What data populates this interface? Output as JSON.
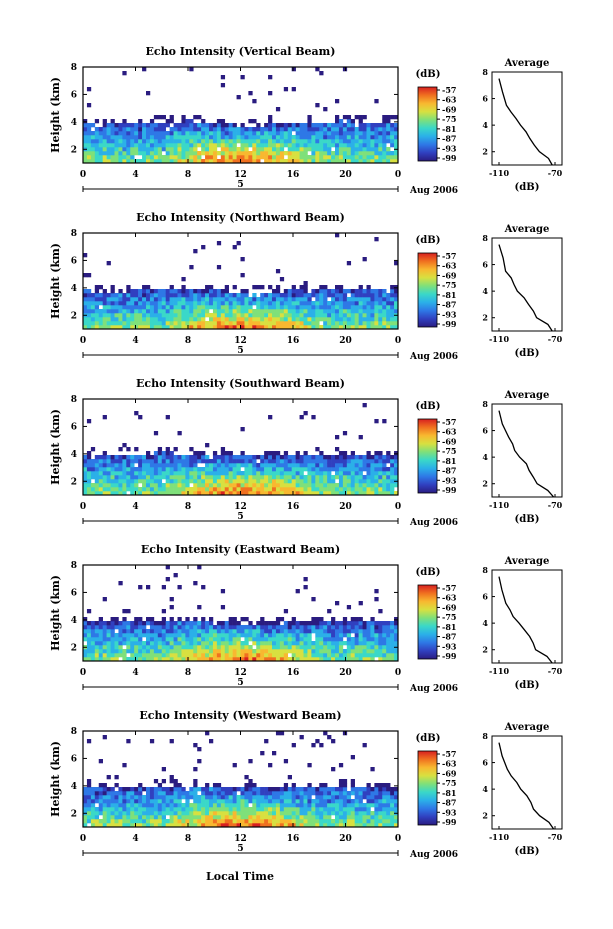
{
  "colorbar_unit": "(dB)",
  "colorbar_labels": [
    "-57",
    "-63",
    "-69",
    "-75",
    "-81",
    "-87",
    "-93",
    "-99"
  ],
  "colorbar_colors": [
    "#2a1c80",
    "#3040c0",
    "#2e78e6",
    "#2bb0e8",
    "#3ad8c8",
    "#7fe07a",
    "#d8e040",
    "#f8b830",
    "#f07020",
    "#d82020"
  ],
  "date_label": "Aug 2006",
  "x_ticks": [
    "0",
    "4",
    "8",
    "12",
    "16",
    "20",
    "0"
  ],
  "y_ticks": [
    "2",
    "4",
    "6",
    "8"
  ],
  "y_label": "Height (km)",
  "x_label": "Local Time",
  "day_marker": "5",
  "avg_title": "Average",
  "avg_xticks": [
    "-110",
    "-70"
  ],
  "avg_xlabel": "(dB)",
  "chart_data": [
    {
      "type": "heatmap",
      "title": "Echo Intensity (Vertical Beam)",
      "xlabel": "",
      "ylabel": "Height (km)",
      "xlim": [
        0,
        24
      ],
      "ylim": [
        1,
        8
      ],
      "zlim": [
        -99,
        -57
      ],
      "unit": "dB",
      "echo_top_km": [
        3.9,
        3.8,
        3.9,
        4.0,
        4.1,
        3.9,
        3.7,
        3.8,
        3.9,
        4.0,
        4.1,
        4.0,
        4.0
      ],
      "avg_profile": {
        "x": [
          -72,
          -75,
          -82,
          -85,
          -88,
          -91,
          -95,
          -98,
          -101,
          -104,
          -108,
          -110
        ],
        "y": [
          1,
          1.5,
          2.0,
          2.5,
          3.0,
          3.5,
          4.0,
          4.5,
          5.0,
          5.5,
          6.5,
          7.5
        ]
      }
    },
    {
      "type": "heatmap",
      "title": "Echo Intensity (Northward Beam)",
      "xlabel": "",
      "ylabel": "Height (km)",
      "xlim": [
        0,
        24
      ],
      "ylim": [
        1,
        8
      ],
      "zlim": [
        -99,
        -57
      ],
      "unit": "dB",
      "echo_top_km": [
        3.8,
        3.7,
        3.8,
        3.9,
        3.9,
        3.8,
        3.7,
        3.7,
        3.8,
        3.9,
        3.9,
        3.9,
        3.9
      ],
      "avg_profile": {
        "x": [
          -72,
          -76,
          -83,
          -86,
          -89,
          -92,
          -96,
          -99,
          -102,
          -105,
          -108,
          -110
        ],
        "y": [
          1,
          1.5,
          2.0,
          2.5,
          3.0,
          3.5,
          4.0,
          4.5,
          5.0,
          5.5,
          6.5,
          7.5
        ]
      }
    },
    {
      "type": "heatmap",
      "title": "Echo Intensity (Southward Beam)",
      "xlabel": "",
      "ylabel": "Height (km)",
      "xlim": [
        0,
        24
      ],
      "ylim": [
        1,
        8
      ],
      "zlim": [
        -99,
        -57
      ],
      "unit": "dB",
      "echo_top_km": [
        4.0,
        3.9,
        4.0,
        4.1,
        4.0,
        3.9,
        3.8,
        3.8,
        3.9,
        3.9,
        4.0,
        3.9,
        3.9
      ],
      "avg_profile": {
        "x": [
          -71,
          -75,
          -82,
          -85,
          -88,
          -91,
          -95,
          -98,
          -101,
          -104,
          -108,
          -110
        ],
        "y": [
          1,
          1.5,
          2.0,
          2.5,
          3.0,
          3.5,
          4.0,
          4.5,
          5.0,
          5.5,
          6.5,
          7.5
        ]
      }
    },
    {
      "type": "heatmap",
      "title": "Echo Intensity (Eastward Beam)",
      "xlabel": "",
      "ylabel": "Height (km)",
      "xlim": [
        0,
        24
      ],
      "ylim": [
        1,
        8
      ],
      "zlim": [
        -99,
        -57
      ],
      "unit": "dB",
      "echo_top_km": [
        3.9,
        3.8,
        3.8,
        3.9,
        4.0,
        3.9,
        3.7,
        3.7,
        3.8,
        3.9,
        3.9,
        3.8,
        3.9
      ],
      "avg_profile": {
        "x": [
          -72,
          -76,
          -83,
          -86,
          -89,
          -92,
          -96,
          -99,
          -102,
          -105,
          -108,
          -110
        ],
        "y": [
          1,
          1.5,
          2.0,
          2.5,
          3.0,
          3.5,
          4.0,
          4.5,
          5.0,
          5.5,
          6.5,
          7.5
        ]
      }
    },
    {
      "type": "heatmap",
      "title": "Echo Intensity (Westward Beam)",
      "xlabel": "Local Time",
      "ylabel": "Height (km)",
      "xlim": [
        0,
        24
      ],
      "ylim": [
        1,
        8
      ],
      "zlim": [
        -99,
        -57
      ],
      "unit": "dB",
      "echo_top_km": [
        3.9,
        3.8,
        3.9,
        4.0,
        4.0,
        3.9,
        3.8,
        3.8,
        3.8,
        3.9,
        4.0,
        3.9,
        3.9
      ],
      "avg_profile": {
        "x": [
          -71,
          -75,
          -82,
          -85,
          -88,
          -91,
          -95,
          -98,
          -101,
          -104,
          -108,
          -110
        ],
        "y": [
          1,
          1.5,
          2.0,
          2.5,
          3.0,
          3.5,
          4.0,
          4.5,
          5.0,
          5.5,
          6.5,
          7.5
        ]
      }
    }
  ]
}
